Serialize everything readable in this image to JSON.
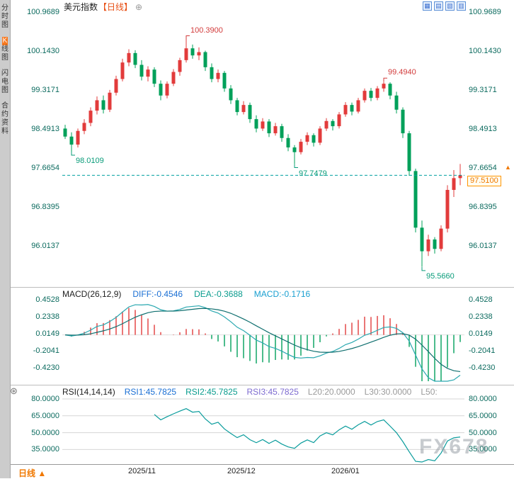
{
  "sidebar": {
    "items": [
      {
        "label": "分时图",
        "hl": []
      },
      {
        "label": "K线图",
        "hl": [
          0
        ]
      },
      {
        "label": "闪电图",
        "hl": []
      },
      {
        "label": "合约资料",
        "hl": []
      }
    ]
  },
  "header": {
    "title": "美元指数",
    "period": "【日线】",
    "add_icon": "⊕"
  },
  "toolbar": {
    "icons": [
      {
        "name": "grid-layout-icon",
        "glyph": "▦"
      },
      {
        "name": "split-layout-icon",
        "glyph": "▤"
      },
      {
        "name": "chart-panel-icon",
        "glyph": "▧"
      },
      {
        "name": "columns-layout-icon",
        "glyph": "▥"
      }
    ]
  },
  "axes": {
    "price_ticks": [
      "100.9689",
      "100.1430",
      "99.3171",
      "98.4913",
      "97.6654",
      "96.8395",
      "96.0137"
    ],
    "macd_ticks": [
      "0.4528",
      "0.2338",
      "0.0149",
      "-0.2041",
      "-0.4230"
    ],
    "rsi_ticks": [
      "80.0000",
      "65.0000",
      "50.0000",
      "35.0000"
    ],
    "dates": [
      "2025/11",
      "2025/12",
      "2026/01"
    ]
  },
  "price_tag": {
    "value": "97.5100"
  },
  "price_arrow": "▲",
  "macd": {
    "name": "MACD(26,12,9)",
    "diff": "DIFF:-0.4546",
    "dea": "DEA:-0.3688",
    "macd": "MACD:-0.1716"
  },
  "rsi": {
    "name": "RSI(14,14,14)",
    "r1": "RSI1:45.7825",
    "r2": "RSI2:45.7825",
    "r3": "RSI3:45.7825",
    "l20": "L20:20.0000",
    "l30": "L30:30.0000",
    "l50": "L50:"
  },
  "bottom": {
    "period": "日线",
    "arrow": "▲"
  },
  "watermark": "FX678",
  "indicator_icon": "⊛",
  "chart_data": {
    "type": "candlestick",
    "symbol": "美元指数",
    "interval": "日线",
    "current_price": 97.51,
    "price_axis_range": [
      95.2,
      101.1
    ],
    "macd_axis_range": [
      -0.55,
      0.55
    ],
    "rsi_axis_range": [
      20,
      88
    ],
    "indicators": {
      "macd_params": [
        26,
        12,
        9
      ],
      "rsi_params": [
        14,
        14,
        14
      ]
    },
    "colors": {
      "up": "#e23b3b",
      "down": "#00a05a",
      "diff_line": "#2aa8b0",
      "dea_line": "#0f6f6f",
      "rsi_line": "#0a9c9c",
      "dashed_price_line": "#00a0a0",
      "tag_orange": "#f07800"
    },
    "annotations": [
      {
        "text": "100.3900",
        "candle": 19,
        "price": 100.39,
        "placement": "above",
        "color": "#d23b3b"
      },
      {
        "text": "99.4940",
        "candle": 50,
        "price": 99.494,
        "placement": "above",
        "color": "#d23b3b"
      },
      {
        "text": "98.0109",
        "candle": 1,
        "price": 98.0109,
        "placement": "below",
        "color": "#0a9c7a"
      },
      {
        "text": "97.7479",
        "candle": 36,
        "price": 97.7479,
        "placement": "below",
        "color": "#0a9c7a"
      },
      {
        "text": "95.5660",
        "candle": 56,
        "price": 95.566,
        "placement": "below",
        "color": "#0a9c7a"
      }
    ],
    "candles": [
      [
        98.5,
        98.58,
        98.28,
        98.33
      ],
      [
        98.33,
        98.42,
        98.01,
        98.16
      ],
      [
        98.16,
        98.5,
        98.1,
        98.45
      ],
      [
        98.45,
        98.7,
        98.38,
        98.62
      ],
      [
        98.62,
        98.95,
        98.55,
        98.88
      ],
      [
        98.88,
        99.18,
        98.8,
        99.1
      ],
      [
        99.1,
        99.2,
        98.82,
        98.9
      ],
      [
        98.9,
        99.32,
        98.85,
        99.26
      ],
      [
        99.26,
        99.62,
        99.2,
        99.55
      ],
      [
        99.55,
        99.98,
        99.5,
        99.9
      ],
      [
        99.9,
        100.18,
        99.82,
        100.1
      ],
      [
        100.1,
        100.16,
        99.78,
        99.85
      ],
      [
        99.85,
        99.95,
        99.52,
        99.6
      ],
      [
        99.6,
        99.82,
        99.5,
        99.75
      ],
      [
        99.75,
        99.8,
        99.38,
        99.45
      ],
      [
        99.45,
        99.52,
        99.1,
        99.2
      ],
      [
        99.2,
        99.5,
        99.14,
        99.45
      ],
      [
        99.45,
        99.76,
        99.4,
        99.7
      ],
      [
        99.7,
        100.0,
        99.62,
        99.95
      ],
      [
        99.95,
        100.39,
        99.9,
        100.2
      ],
      [
        100.2,
        100.28,
        99.98,
        100.05
      ],
      [
        100.05,
        100.22,
        99.95,
        100.12
      ],
      [
        100.12,
        100.15,
        99.72,
        99.8
      ],
      [
        99.8,
        99.88,
        99.48,
        99.55
      ],
      [
        99.55,
        99.75,
        99.48,
        99.68
      ],
      [
        99.68,
        99.72,
        99.28,
        99.35
      ],
      [
        99.35,
        99.42,
        99.02,
        99.1
      ],
      [
        99.1,
        99.15,
        98.78,
        98.85
      ],
      [
        98.85,
        99.08,
        98.8,
        99.0
      ],
      [
        99.0,
        99.05,
        98.62,
        98.7
      ],
      [
        98.7,
        98.78,
        98.42,
        98.5
      ],
      [
        98.5,
        98.72,
        98.45,
        98.65
      ],
      [
        98.65,
        98.7,
        98.32,
        98.4
      ],
      [
        98.4,
        98.62,
        98.35,
        98.55
      ],
      [
        98.55,
        98.6,
        98.22,
        98.3
      ],
      [
        98.3,
        98.38,
        98.02,
        98.1
      ],
      [
        98.1,
        98.15,
        97.75,
        98.0
      ],
      [
        98.0,
        98.28,
        97.95,
        98.22
      ],
      [
        98.22,
        98.42,
        98.15,
        98.36
      ],
      [
        98.36,
        98.4,
        98.12,
        98.2
      ],
      [
        98.2,
        98.55,
        98.15,
        98.5
      ],
      [
        98.5,
        98.72,
        98.45,
        98.66
      ],
      [
        98.66,
        98.7,
        98.46,
        98.55
      ],
      [
        98.55,
        98.85,
        98.5,
        98.8
      ],
      [
        98.8,
        99.06,
        98.75,
        99.0
      ],
      [
        99.0,
        99.05,
        98.78,
        98.86
      ],
      [
        98.86,
        99.15,
        98.82,
        99.1
      ],
      [
        99.1,
        99.35,
        99.05,
        99.3
      ],
      [
        99.3,
        99.36,
        99.08,
        99.15
      ],
      [
        99.15,
        99.4,
        99.1,
        99.35
      ],
      [
        99.35,
        99.49,
        99.28,
        99.45
      ],
      [
        99.45,
        99.48,
        99.12,
        99.2
      ],
      [
        99.2,
        99.28,
        98.82,
        98.9
      ],
      [
        98.9,
        98.95,
        98.3,
        98.4
      ],
      [
        98.4,
        98.45,
        97.5,
        97.6
      ],
      [
        97.6,
        97.65,
        96.3,
        96.4
      ],
      [
        96.4,
        96.55,
        95.57,
        95.9
      ],
      [
        95.9,
        96.25,
        95.8,
        96.15
      ],
      [
        96.15,
        96.2,
        95.85,
        95.95
      ],
      [
        95.95,
        96.45,
        95.9,
        96.38
      ],
      [
        96.38,
        97.3,
        96.3,
        97.2
      ],
      [
        97.2,
        97.62,
        97.05,
        97.45
      ],
      [
        97.45,
        97.75,
        97.3,
        97.51
      ]
    ]
  }
}
